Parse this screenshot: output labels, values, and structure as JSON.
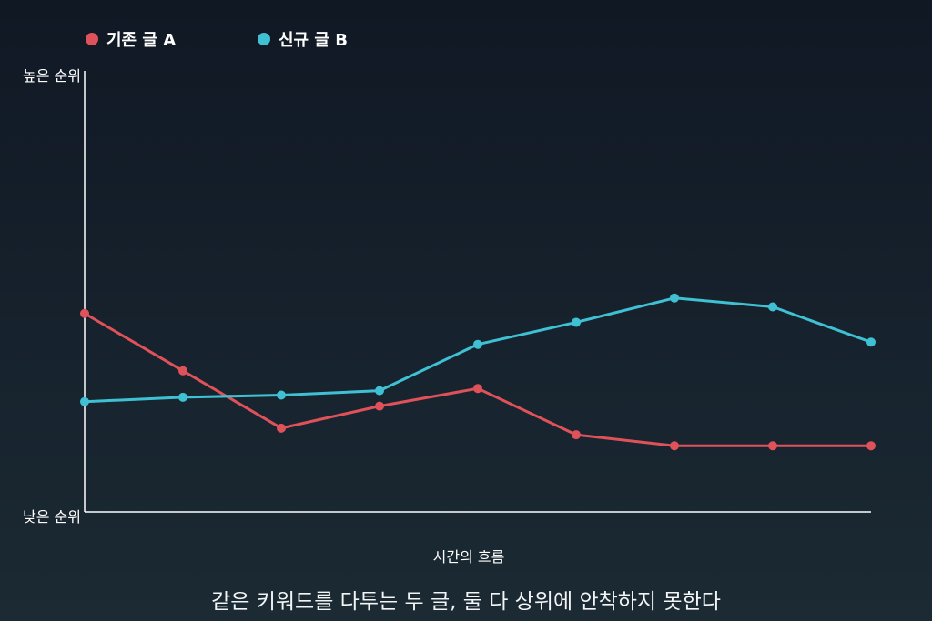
{
  "caption": "같은 키워드를 다투는 두 글, 둘 다 상위에 안착하지 못한다",
  "colors": {
    "series_a": "#e0525a",
    "series_b": "#3fc1d3",
    "axis": "#ffffff"
  },
  "chart_data": {
    "type": "line",
    "title": "",
    "xlabel": "시간의 흐름",
    "ylabel": "",
    "y_top_label": "높은 순위",
    "y_bottom_label": "낮은 순위",
    "ylim": [
      0,
      100
    ],
    "x": [
      1,
      2,
      3,
      4,
      5,
      6,
      7,
      8,
      9
    ],
    "legend_position": "top-left",
    "grid": false,
    "series": [
      {
        "name": "기존 글 A",
        "color": "#e0525a",
        "values": [
          45,
          32,
          19,
          24,
          28,
          17.5,
          15,
          15,
          15
        ]
      },
      {
        "name": "신규 글 B",
        "color": "#3fc1d3",
        "values": [
          25,
          26,
          26.5,
          27.5,
          38,
          43,
          48.5,
          46.5,
          38.5
        ]
      }
    ]
  }
}
